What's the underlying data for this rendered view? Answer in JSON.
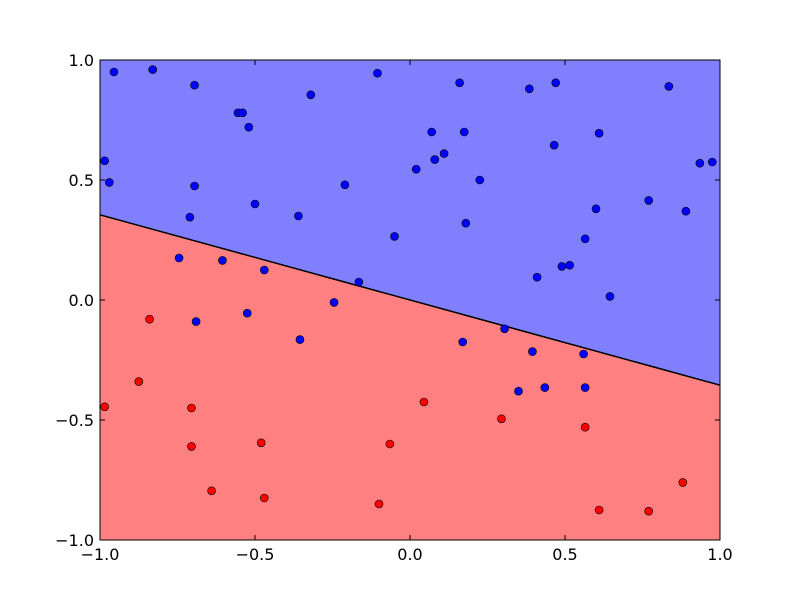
{
  "chart_data": {
    "type": "scatter",
    "title": "",
    "xlabel": "",
    "ylabel": "",
    "xlim": [
      -1.0,
      1.0
    ],
    "ylim": [
      -1.0,
      1.0
    ],
    "grid": false,
    "x_ticks": [
      -1.0,
      -0.5,
      0.0,
      0.5,
      1.0
    ],
    "y_ticks": [
      -1.0,
      -0.5,
      0.0,
      0.5,
      1.0
    ],
    "x_tick_labels": [
      "−1.0",
      "−0.5",
      "0.0",
      "0.5",
      "1.0"
    ],
    "y_tick_labels": [
      "−1.0",
      "−0.5",
      "0.0",
      "0.5",
      "1.0"
    ],
    "decision_boundary": {
      "x": [
        -1.0,
        1.0
      ],
      "y": [
        0.355,
        -0.355
      ]
    },
    "regions": [
      {
        "side": "above",
        "color": "#8080ff"
      },
      {
        "side": "below",
        "color": "#ff8080"
      }
    ],
    "series": [
      {
        "color": "#0000ff",
        "points": [
          [
            -0.985,
            0.58
          ],
          [
            -0.97,
            0.49
          ],
          [
            -0.955,
            0.95
          ],
          [
            -0.83,
            0.96
          ],
          [
            -0.695,
            0.895
          ],
          [
            -0.695,
            0.475
          ],
          [
            -0.71,
            0.345
          ],
          [
            -0.555,
            0.78
          ],
          [
            -0.54,
            0.78
          ],
          [
            -0.52,
            0.72
          ],
          [
            -0.5,
            0.4
          ],
          [
            -0.32,
            0.855
          ],
          [
            -0.36,
            0.35
          ],
          [
            -0.21,
            0.48
          ],
          [
            -0.105,
            0.945
          ],
          [
            -0.05,
            0.265
          ],
          [
            0.02,
            0.545
          ],
          [
            0.07,
            0.7
          ],
          [
            0.08,
            0.585
          ],
          [
            0.11,
            0.61
          ],
          [
            0.16,
            0.905
          ],
          [
            0.175,
            0.7
          ],
          [
            0.18,
            0.32
          ],
          [
            0.225,
            0.5
          ],
          [
            0.385,
            0.88
          ],
          [
            0.465,
            0.645
          ],
          [
            0.47,
            0.905
          ],
          [
            0.49,
            0.14
          ],
          [
            0.515,
            0.145
          ],
          [
            0.41,
            0.095
          ],
          [
            0.565,
            0.255
          ],
          [
            0.6,
            0.38
          ],
          [
            0.61,
            0.695
          ],
          [
            0.645,
            0.015
          ],
          [
            0.77,
            0.415
          ],
          [
            0.835,
            0.89
          ],
          [
            0.89,
            0.37
          ],
          [
            0.935,
            0.57
          ],
          [
            0.975,
            0.575
          ],
          [
            -0.745,
            0.175
          ],
          [
            -0.605,
            0.165
          ],
          [
            -0.47,
            0.125
          ],
          [
            -0.165,
            0.075
          ],
          [
            -0.245,
            -0.01
          ],
          [
            -0.525,
            -0.055
          ],
          [
            -0.69,
            -0.09
          ],
          [
            -0.355,
            -0.165
          ],
          [
            0.17,
            -0.175
          ],
          [
            0.305,
            -0.12
          ],
          [
            0.395,
            -0.215
          ],
          [
            0.56,
            -0.225
          ],
          [
            0.35,
            -0.38
          ],
          [
            0.435,
            -0.365
          ],
          [
            0.565,
            -0.365
          ]
        ]
      },
      {
        "color": "#ff0000",
        "points": [
          [
            -0.84,
            -0.08
          ],
          [
            -0.875,
            -0.34
          ],
          [
            -0.985,
            -0.445
          ],
          [
            -0.705,
            -0.45
          ],
          [
            -0.705,
            -0.61
          ],
          [
            -0.48,
            -0.595
          ],
          [
            -0.64,
            -0.795
          ],
          [
            -0.47,
            -0.825
          ],
          [
            -0.065,
            -0.6
          ],
          [
            -0.1,
            -0.85
          ],
          [
            0.045,
            -0.425
          ],
          [
            0.295,
            -0.495
          ],
          [
            0.565,
            -0.53
          ],
          [
            0.61,
            -0.875
          ],
          [
            0.77,
            -0.88
          ],
          [
            0.88,
            -0.76
          ]
        ]
      }
    ]
  }
}
